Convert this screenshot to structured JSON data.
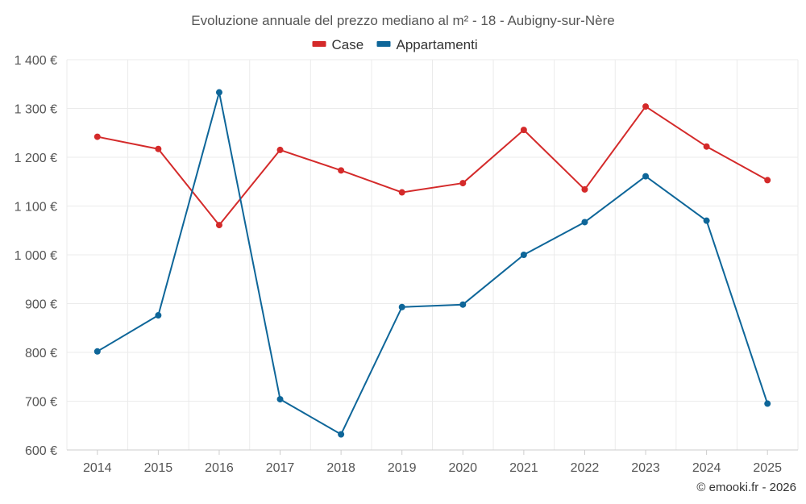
{
  "chart_data": {
    "type": "line",
    "title": "Evoluzione annuale del prezzo mediano al m² - 18 - Aubigny-sur-Nère",
    "categories": [
      "2014",
      "2015",
      "2016",
      "2017",
      "2018",
      "2019",
      "2020",
      "2021",
      "2022",
      "2023",
      "2024",
      "2025"
    ],
    "series": [
      {
        "name": "Case",
        "color": "#d42a2a",
        "values": [
          1242,
          1217,
          1061,
          1215,
          1173,
          1128,
          1147,
          1256,
          1134,
          1304,
          1222,
          1153
        ]
      },
      {
        "name": "Appartamenti",
        "color": "#0e6699",
        "values": [
          802,
          876,
          1333,
          704,
          632,
          893,
          898,
          1000,
          1067,
          1161,
          1070,
          695
        ]
      }
    ],
    "ylim": [
      600,
      1400
    ],
    "yticks": [
      600,
      700,
      800,
      900,
      1000,
      1100,
      1200,
      1300,
      1400
    ],
    "ytick_labels": [
      "600 €",
      "700 €",
      "800 €",
      "900 €",
      "1 000 €",
      "1 100 €",
      "1 200 €",
      "1 300 €",
      "1 400 €"
    ],
    "legend_position": "top-center",
    "grid": true
  },
  "credit": "© emooki.fr - 2026"
}
